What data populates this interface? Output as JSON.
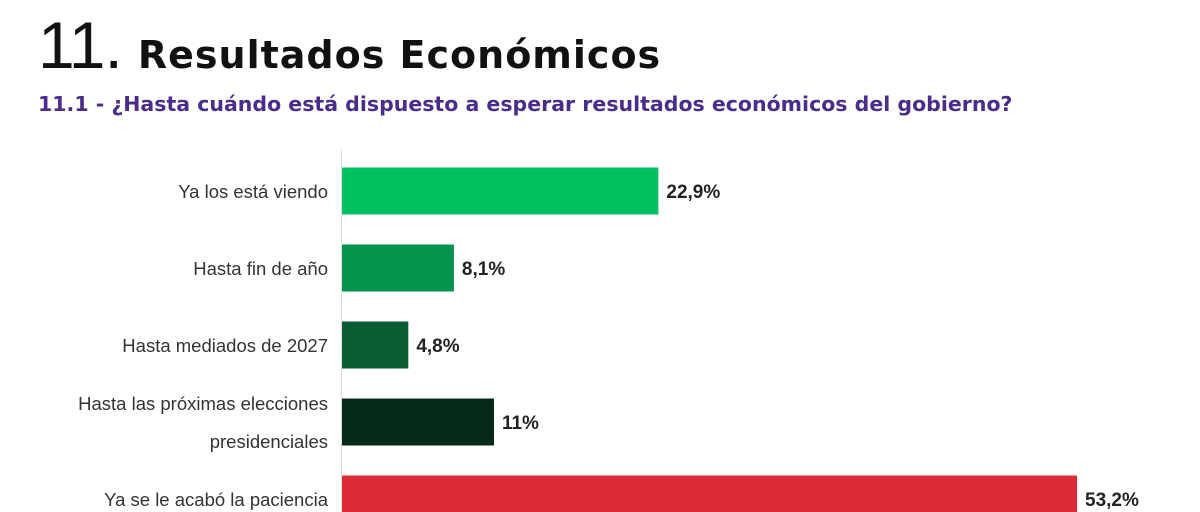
{
  "header": {
    "section_number": "11.",
    "section_title": "Resultados Económicos",
    "subtitle": "11.1 - ¿Hasta cuándo está dispuesto a esperar resultados económicos del gobierno?"
  },
  "chart_data": {
    "type": "bar",
    "orientation": "horizontal",
    "categories": [
      [
        "Ya los está viendo"
      ],
      [
        "Hasta fin de año"
      ],
      [
        "Hasta mediados de 2027"
      ],
      [
        "Hasta las próximas elecciones",
        "presidenciales"
      ],
      [
        "Ya se le acabó la paciencia"
      ]
    ],
    "values": [
      22.9,
      8.1,
      4.8,
      11,
      53.2
    ],
    "value_labels": [
      "22,9%",
      "8,1%",
      "4,8%",
      "11%",
      "53,2%"
    ],
    "colors": [
      "#00c060",
      "#03934d",
      "#0b5c33",
      "#052a18",
      "#dc2b36"
    ],
    "xlim": [
      0,
      53.2
    ],
    "grid": false,
    "legend": "none"
  }
}
